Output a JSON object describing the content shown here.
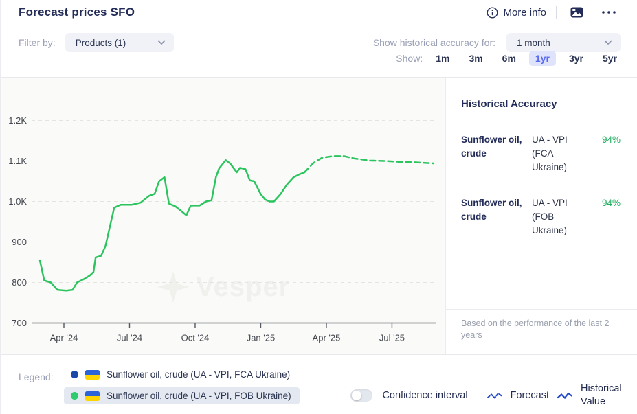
{
  "header": {
    "title": "Forecast prices SFO",
    "more_info_label": "More info"
  },
  "filters": {
    "filter_by_label": "Filter by:",
    "products_dropdown_value": "Products (1)",
    "accuracy_label": "Show historical accuracy for:",
    "accuracy_dropdown_value": "1 month",
    "show_label": "Show:",
    "ranges": [
      "1m",
      "3m",
      "6m",
      "1yr",
      "3yr",
      "5yr"
    ],
    "selected_range": "1yr"
  },
  "chart_data": {
    "type": "line",
    "title": "Forecast prices SFO",
    "watermark": "Vesper",
    "xlabel": "",
    "ylabel": "",
    "ylim": [
      700,
      1250
    ],
    "grid": "horizontal-dashed",
    "x_unit": "months since Jan 2024",
    "x_ticks": [
      {
        "label": "Apr '24",
        "t": 3
      },
      {
        "label": "Jul '24",
        "t": 6
      },
      {
        "label": "Oct '24",
        "t": 9
      },
      {
        "label": "Jan '25",
        "t": 12
      },
      {
        "label": "Apr '25",
        "t": 15
      },
      {
        "label": "Jul '25",
        "t": 18
      }
    ],
    "y_ticks": [
      {
        "label": "1.2K",
        "v": 1200
      },
      {
        "label": "1.1K",
        "v": 1100
      },
      {
        "label": "1.0K",
        "v": 1000
      },
      {
        "label": "900",
        "v": 900
      },
      {
        "label": "800",
        "v": 800
      },
      {
        "label": "700",
        "v": 700
      }
    ],
    "series": [
      {
        "name": "Sunflower oil, crude (UA - VPI, FOB Ukraine) — historical",
        "style": "solid",
        "color": "#2cc45f",
        "points": [
          [
            1.9,
            855
          ],
          [
            2.1,
            805
          ],
          [
            2.4,
            800
          ],
          [
            2.7,
            782
          ],
          [
            3.1,
            780
          ],
          [
            3.4,
            782
          ],
          [
            3.6,
            800
          ],
          [
            3.9,
            808
          ],
          [
            4.2,
            818
          ],
          [
            4.35,
            826
          ],
          [
            4.45,
            862
          ],
          [
            4.7,
            866
          ],
          [
            4.9,
            890
          ],
          [
            5.3,
            985
          ],
          [
            5.6,
            992
          ],
          [
            6.1,
            992
          ],
          [
            6.5,
            997
          ],
          [
            6.9,
            1014
          ],
          [
            7.15,
            1019
          ],
          [
            7.35,
            1050
          ],
          [
            7.6,
            1060
          ],
          [
            7.8,
            995
          ],
          [
            8.1,
            988
          ],
          [
            8.4,
            975
          ],
          [
            8.6,
            966
          ],
          [
            8.8,
            990
          ],
          [
            9.2,
            990
          ],
          [
            9.5,
            1000
          ],
          [
            9.75,
            1003
          ],
          [
            9.95,
            1060
          ],
          [
            10.1,
            1082
          ],
          [
            10.4,
            1102
          ],
          [
            10.6,
            1094
          ],
          [
            10.9,
            1072
          ],
          [
            11.05,
            1083
          ],
          [
            11.3,
            1080
          ],
          [
            11.5,
            1052
          ],
          [
            11.7,
            1050
          ],
          [
            12.0,
            1018
          ],
          [
            12.2,
            1005
          ],
          [
            12.4,
            1000
          ],
          [
            12.6,
            1000
          ],
          [
            12.9,
            1018
          ],
          [
            13.2,
            1042
          ],
          [
            13.5,
            1060
          ],
          [
            13.8,
            1068
          ],
          [
            14.0,
            1072
          ]
        ]
      },
      {
        "name": "Sunflower oil, crude (UA - VPI, FOB Ukraine) — forecast",
        "style": "dashed",
        "color": "#2cc45f",
        "points": [
          [
            14.0,
            1072
          ],
          [
            14.4,
            1095
          ],
          [
            14.8,
            1108
          ],
          [
            15.3,
            1112
          ],
          [
            15.8,
            1112
          ],
          [
            16.3,
            1106
          ],
          [
            17.0,
            1101
          ],
          [
            17.7,
            1100
          ],
          [
            18.3,
            1098
          ],
          [
            19.0,
            1097
          ],
          [
            19.9,
            1094
          ]
        ]
      }
    ]
  },
  "accuracy_panel": {
    "title": "Historical Accuracy",
    "rows": [
      {
        "product": "Sunflower oil, crude",
        "source": "UA - VPI (FCA Ukraine)",
        "accuracy": "94%"
      },
      {
        "product": "Sunflower oil, crude",
        "source": "UA - VPI (FOB Ukraine)",
        "accuracy": "94%"
      }
    ],
    "footnote": "Based on the performance of the last 2 years"
  },
  "legend": {
    "label": "Legend:",
    "items": [
      {
        "dot_color": "#1b47a8",
        "flag": "ukraine-flag",
        "label": "Sunflower oil, crude (UA - VPI, FCA Ukraine)",
        "highlighted": false
      },
      {
        "dot_color": "#2ecb6e",
        "flag": "ukraine-flag",
        "label": "Sunflower oil, crude (UA - VPI, FOB Ukraine)",
        "highlighted": true
      }
    ]
  },
  "footer_controls": {
    "confidence_toggle_label": "Confidence interval",
    "confidence_interval_enabled": false,
    "forecast_label": "Forecast",
    "historical_label": "Historical Value"
  },
  "colors": {
    "accent_navy": "#232c58",
    "line_green": "#2cc45f",
    "accuracy_green": "#1fae5e",
    "selected_range_bg": "#dfe3fc",
    "selected_range_text": "#5b6bf0",
    "legend_highlight_bg": "#e4e8f1",
    "chart_bg": "#fafaf9"
  }
}
